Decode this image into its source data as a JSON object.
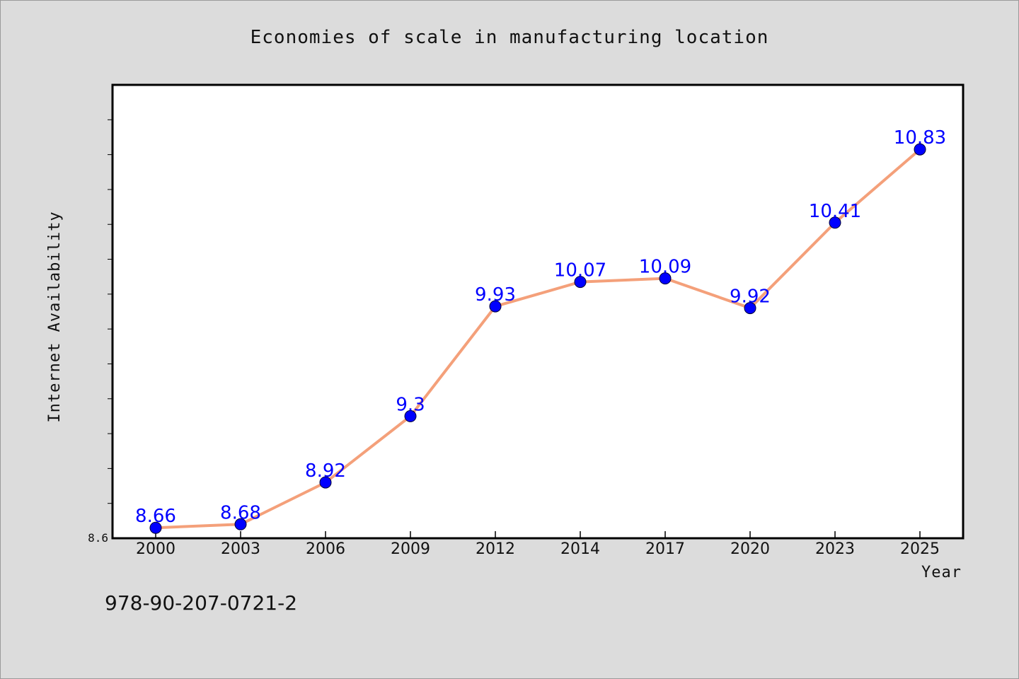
{
  "chart_data": {
    "type": "line",
    "title": "Economies of scale in manufacturing location",
    "xlabel": "Year",
    "ylabel": "Internet Availability",
    "categories": [
      "2000",
      "2003",
      "2006",
      "2009",
      "2012",
      "2014",
      "2017",
      "2020",
      "2023",
      "2025"
    ],
    "series": [
      {
        "values": [
          8.66,
          8.68,
          8.92,
          9.3,
          9.93,
          10.07,
          10.09,
          9.92,
          10.41,
          10.83
        ],
        "labels": [
          "8.66",
          "8.68",
          "8.92",
          "9.3",
          "9.93",
          "10.07",
          "10.09",
          "9.92",
          "10.41",
          "10.83"
        ],
        "line_color": "#f4a07a",
        "marker_color": "#0000ff"
      }
    ],
    "ylim": [
      8.6,
      11.2
    ],
    "ytick_labels": [
      "8.6"
    ],
    "grid": false
  },
  "footer": {
    "code": "978-90-207-0721-2"
  },
  "colors": {
    "background": "#dcdcdc",
    "plot_background": "#ffffff",
    "axis": "#000000"
  }
}
